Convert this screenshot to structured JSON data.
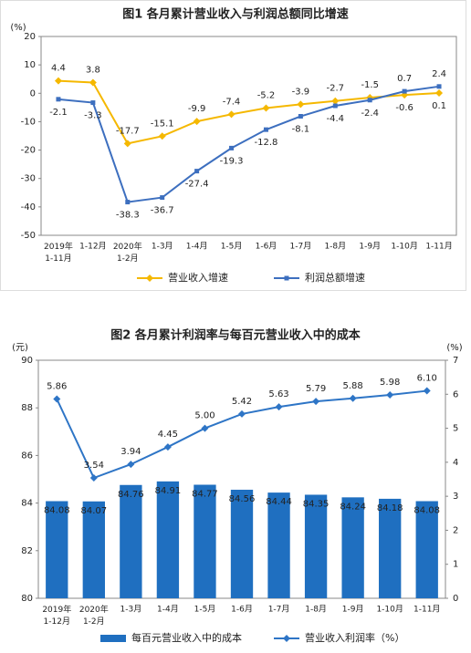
{
  "chart_data": [
    {
      "type": "line",
      "title": "图1 各月累计营业收入与利润总额同比增速",
      "y_label": "(%)",
      "categories": [
        "2019年\n1-11月",
        "1-12月",
        "2020年\n1-2月",
        "1-3月",
        "1-4月",
        "1-5月",
        "1-6月",
        "1-7月",
        "1-8月",
        "1-9月",
        "1-10月",
        "1-11月"
      ],
      "ylim": [
        -50,
        20
      ],
      "yticks": [
        -50,
        -40,
        -30,
        -20,
        -10,
        0,
        10,
        20
      ],
      "series": [
        {
          "name": "营业收入增速",
          "color": "#f5b800",
          "marker": "diamond",
          "values": [
            4.4,
            3.8,
            -17.7,
            -15.1,
            -9.9,
            -7.4,
            -5.2,
            -3.9,
            -2.7,
            -1.5,
            -0.6,
            0.1
          ]
        },
        {
          "name": "利润总额增速",
          "color": "#3d6fbf",
          "marker": "square",
          "values": [
            -2.1,
            -3.3,
            -38.3,
            -36.7,
            -27.4,
            -19.3,
            -12.8,
            -8.1,
            -4.4,
            -2.4,
            0.7,
            2.4
          ]
        }
      ]
    },
    {
      "type": "bar_line",
      "title": "图2 各月累计利润率与每百元营业收入中的成本",
      "y_label": "(元)",
      "y2_label": "(%)",
      "categories": [
        "2019年\n1-12月",
        "2020年\n1-2月",
        "1-3月",
        "1-4月",
        "1-5月",
        "1-6月",
        "1-7月",
        "1-8月",
        "1-9月",
        "1-10月",
        "1-11月"
      ],
      "ylim": [
        80,
        90
      ],
      "yticks": [
        80,
        82,
        84,
        86,
        88,
        90
      ],
      "y2lim": [
        0,
        7
      ],
      "y2ticks": [
        0,
        1,
        2,
        3,
        4,
        5,
        6,
        7
      ],
      "series": [
        {
          "name": "每百元营业收入中的成本",
          "color": "#1f6fc0",
          "values": [
            84.08,
            84.07,
            84.76,
            84.91,
            84.77,
            84.56,
            84.44,
            84.35,
            84.24,
            84.18,
            84.08
          ]
        },
        {
          "name": "营业收入利润率（%）",
          "color": "#2e75c6",
          "marker": "diamond",
          "axis": "y2",
          "values": [
            5.86,
            3.54,
            3.94,
            4.45,
            5.0,
            5.42,
            5.63,
            5.79,
            5.88,
            5.98,
            6.1
          ],
          "value_labels": [
            "5.86",
            "3.54",
            "3.94",
            "4.45",
            "5.00",
            "5.42",
            "5.63",
            "5.79",
            "5.88",
            "5.98",
            "6.10"
          ]
        }
      ]
    }
  ]
}
